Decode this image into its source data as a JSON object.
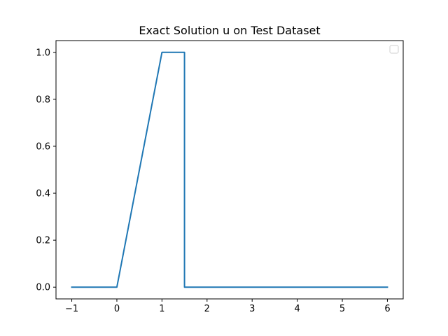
{
  "chart_data": {
    "type": "line",
    "title": "Exact Solution u on Test Dataset",
    "xlabel": "",
    "ylabel": "",
    "xlim": [
      -1.35,
      6.35
    ],
    "ylim": [
      -0.05,
      1.05
    ],
    "xticks": [
      -1,
      0,
      1,
      2,
      3,
      4,
      5,
      6
    ],
    "xtick_labels": [
      "−1",
      "0",
      "1",
      "2",
      "3",
      "4",
      "5",
      "6"
    ],
    "yticks": [
      0.0,
      0.2,
      0.4,
      0.6,
      0.8,
      1.0
    ],
    "ytick_labels": [
      "0.0",
      "0.2",
      "0.4",
      "0.6",
      "0.8",
      "1.0"
    ],
    "grid": false,
    "legend": {
      "placement": "top-right",
      "entries": []
    },
    "series": [
      {
        "color": "#1f77b4",
        "x": [
          -1,
          0,
          1,
          1.5,
          1.5,
          6
        ],
        "y": [
          0,
          0,
          1,
          1,
          0,
          0
        ]
      }
    ]
  }
}
